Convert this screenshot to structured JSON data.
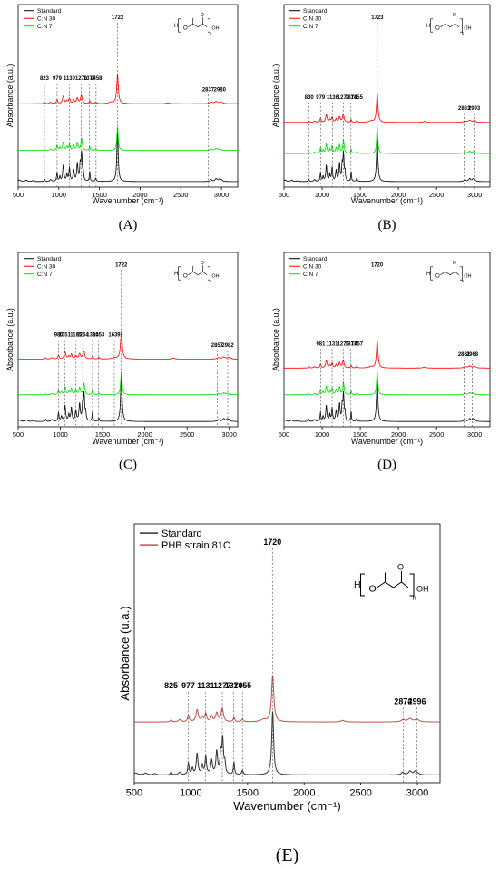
{
  "chart_data": [
    {
      "type": "line",
      "panel": "(A)",
      "xlabel": "Wavenumber (cm⁻¹)",
      "ylabel": "Absorbance (a.u.)",
      "xlim": [
        500,
        3200
      ],
      "xticks": [
        500,
        1000,
        1500,
        2000,
        2500,
        3000
      ],
      "legend_position": "top-left",
      "series": [
        {
          "name": "Standard",
          "color": "#000000",
          "offset": 0.0
        },
        {
          "name": "C:N 30",
          "color": "#ff0000",
          "offset": 1.25
        },
        {
          "name": "C:N 7",
          "color": "#00dd00",
          "offset": 0.5
        }
      ],
      "peaks": [
        823,
        979,
        1130,
        1276,
        1377,
        1458,
        1722,
        2837,
        2980
      ],
      "peak_labels": [
        "823",
        "979",
        "1130",
        "1276",
        "1377",
        "1458",
        "1722",
        "2837",
        "2980"
      ],
      "label_series_offset": 1.25
    },
    {
      "type": "line",
      "panel": "(B)",
      "xlabel": "Wavenumber (cm⁻¹)",
      "ylabel": "Absorbance (a.u.)",
      "xlim": [
        500,
        3200
      ],
      "xticks": [
        500,
        1000,
        1500,
        2000,
        2500,
        3000
      ],
      "legend_position": "top-left",
      "series": [
        {
          "name": "Standard",
          "color": "#000000",
          "offset": 0.0
        },
        {
          "name": "C:N 30",
          "color": "#ff0000",
          "offset": 0.95
        },
        {
          "name": "C:N 7",
          "color": "#00dd00",
          "offset": 0.45
        }
      ],
      "peaks": [
        830,
        979,
        1136,
        1279,
        1378,
        1455,
        1723,
        2863,
        2993
      ],
      "peak_labels": [
        "830",
        "979",
        "1136",
        "1279",
        "1378",
        "1455",
        "1723",
        "2863",
        "2993"
      ],
      "label_series_offset": 0.95
    },
    {
      "type": "line",
      "panel": "(C)",
      "xlabel": "Wavenumber (cm⁻¹)",
      "ylabel": "Absorbance (a.u.)",
      "xlim": [
        500,
        3100
      ],
      "xticks": [
        500,
        1000,
        1500,
        2000,
        2500,
        3000
      ],
      "legend_position": "top-left",
      "series": [
        {
          "name": "Standard",
          "color": "#000000",
          "offset": 0.0
        },
        {
          "name": "C:N 30",
          "color": "#ff0000",
          "offset": 1.05
        },
        {
          "name": "C:N 7",
          "color": "#00dd00",
          "offset": 0.45
        }
      ],
      "peaks": [
        980,
        1051,
        1185,
        1264,
        1380,
        1453,
        1639,
        1722,
        2857,
        2982
      ],
      "peak_labels": [
        "980",
        "1051",
        "1185",
        "1264",
        "1380",
        "1453",
        "1639",
        "1722",
        "2857",
        "2982"
      ],
      "label_series_offset": 1.05
    },
    {
      "type": "line",
      "panel": "(D)",
      "xlabel": "Wavenumber (cm⁻¹)",
      "ylabel": "Absorbance (a.u.)",
      "xlim": [
        500,
        3200
      ],
      "xticks": [
        500,
        1000,
        1500,
        2000,
        2500,
        3000
      ],
      "legend_position": "top-left",
      "series": [
        {
          "name": "Standard",
          "color": "#000000",
          "offset": 0.0
        },
        {
          "name": "C:N 30",
          "color": "#ff0000",
          "offset": 0.9
        },
        {
          "name": "C:N 7",
          "color": "#00dd00",
          "offset": 0.45
        }
      ],
      "peaks": [
        981,
        1131,
        1276,
        1377,
        1457,
        1720,
        2861,
        2968
      ],
      "peak_labels": [
        "981",
        "1131",
        "1276",
        "1377",
        "1457",
        "1720",
        "2861",
        "2968"
      ],
      "label_series_offset": 0.9
    },
    {
      "type": "line",
      "panel": "(E)",
      "xlabel": "Wavenumber (cm⁻¹)",
      "ylabel": "Absorbance (u.a.)",
      "xlim": [
        500,
        3200
      ],
      "xticks": [
        500,
        1000,
        1500,
        2000,
        2500,
        3000
      ],
      "legend_position": "top-left",
      "series": [
        {
          "name": "Standard",
          "color": "#333333",
          "offset": 0.0
        },
        {
          "name": "PHB strain 81C",
          "color": "#c0504d",
          "offset": 0.6
        }
      ],
      "peaks": [
        825,
        977,
        1131,
        1277,
        1379,
        1455,
        1720,
        2874,
        2996
      ],
      "peak_labels": [
        "825",
        "977",
        "1131",
        "1277",
        "1379",
        "1455",
        "1720",
        "2874",
        "2996"
      ],
      "label_series_offset": 0.6
    }
  ],
  "panels": {
    "a": {
      "caption": "(A)"
    },
    "b": {
      "caption": "(B)"
    },
    "c": {
      "caption": "(C)"
    },
    "d": {
      "caption": "(D)"
    },
    "e": {
      "caption": "(E)"
    }
  },
  "structure": {
    "h_label": "H",
    "o_label": "O",
    "oh_label": "OH",
    "n_label": "n"
  }
}
